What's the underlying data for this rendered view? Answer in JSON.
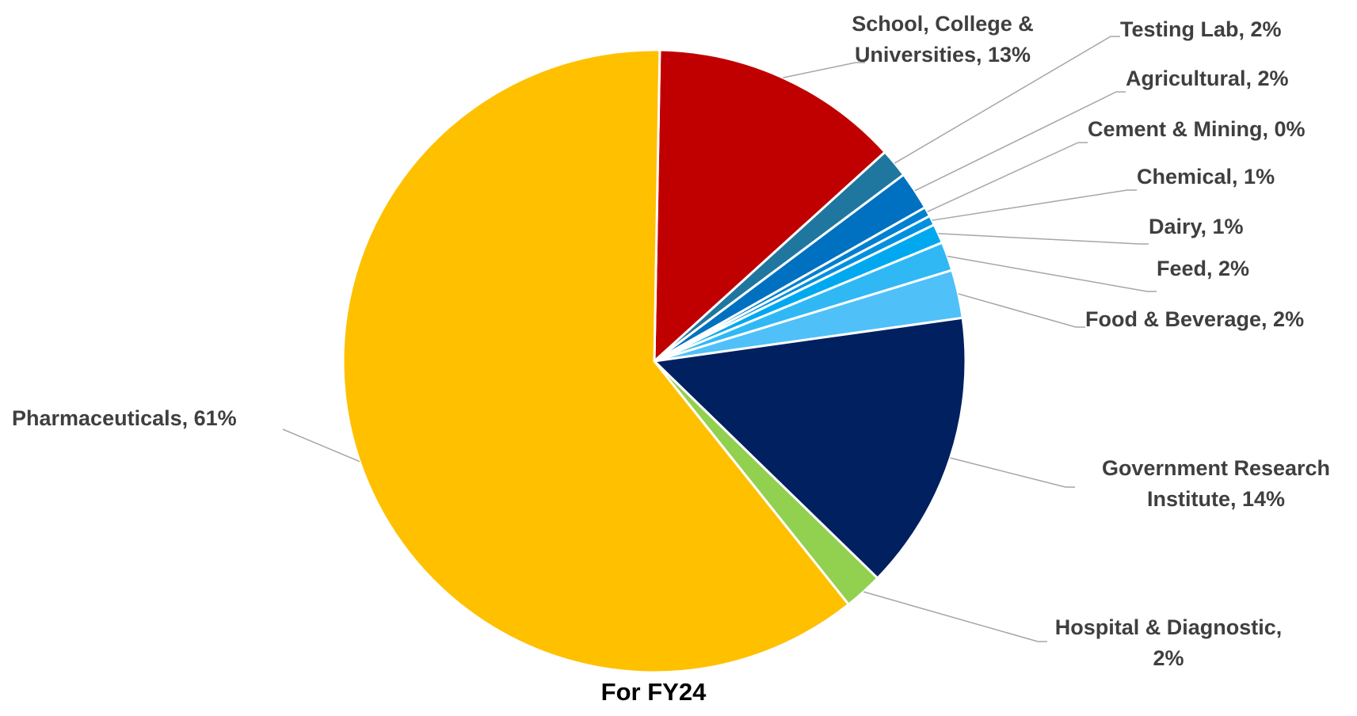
{
  "chart_data": {
    "type": "pie",
    "title": "",
    "caption": "For FY24",
    "start_angle_deg": 89,
    "direction": "clockwise",
    "slices": [
      {
        "name": "School, College & Universities",
        "label_lines": [
          "School, College &",
          "Universities, 13%"
        ],
        "value": 13,
        "color": "#C00000"
      },
      {
        "name": "Testing Lab",
        "label_lines": [
          "Testing Lab, 2%"
        ],
        "value": 1.5,
        "color": "#1F77A0"
      },
      {
        "name": "Agricultural",
        "label_lines": [
          "Agricultural, 2%"
        ],
        "value": 2,
        "color": "#0070C0"
      },
      {
        "name": "Cement & Mining",
        "label_lines": [
          "Cement & Mining, 0%"
        ],
        "value": 0.5,
        "color": "#0080D0"
      },
      {
        "name": "Chemical",
        "label_lines": [
          "Chemical, 1%"
        ],
        "value": 0.5,
        "color": "#0090E0"
      },
      {
        "name": "Dairy",
        "label_lines": [
          "Dairy, 1%"
        ],
        "value": 1,
        "color": "#00A8F0"
      },
      {
        "name": "Feed",
        "label_lines": [
          "Feed, 2%"
        ],
        "value": 1.5,
        "color": "#30B8F5"
      },
      {
        "name": "Food & Beverage",
        "label_lines": [
          "Food & Beverage, 2%"
        ],
        "value": 2.5,
        "color": "#50C0F8"
      },
      {
        "name": "Government Research Institute",
        "label_lines": [
          "Government Research",
          "Institute, 14%"
        ],
        "value": 14.5,
        "color": "#002060"
      },
      {
        "name": "Hospital & Diagnostic",
        "label_lines": [
          "Hospital & Diagnostic,",
          "2%"
        ],
        "value": 2,
        "color": "#92D050"
      },
      {
        "name": "Pharmaceuticals",
        "label_lines": [
          "Pharmaceuticals, 61%"
        ],
        "value": 61,
        "color": "#FFC000"
      }
    ]
  }
}
